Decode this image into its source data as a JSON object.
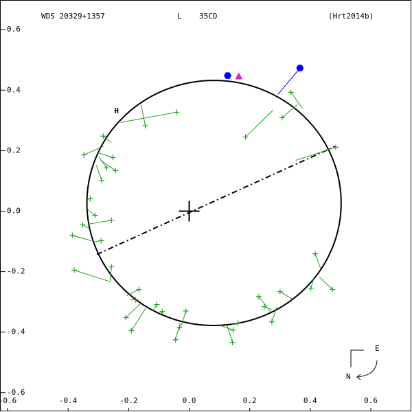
{
  "chart_data": {
    "type": "orbit",
    "title": "WDS 20329+1357",
    "component": "L",
    "discoverer": "35CD",
    "reference": "(Hrt2014b)",
    "xlim": [
      -0.625,
      0.736
    ],
    "ylim": [
      -0.664,
      0.698
    ],
    "xticks": [
      -0.6,
      -0.4,
      -0.2,
      {
        "value": 0,
        "label": "0.0"
      },
      0.2,
      0.4,
      0.6
    ],
    "yticks": [
      0.6,
      0.4,
      0.2,
      {
        "value": 0,
        "label": "0.0"
      },
      -0.2,
      -0.4,
      -0.6
    ],
    "orbit": {
      "cx": 0.082,
      "cy": 0.027,
      "rx": 0.42,
      "ry": 0.405,
      "color": "#000000"
    },
    "node_line": {
      "x": [
        -0.305,
        0.482
      ],
      "y": [
        -0.143,
        0.214
      ],
      "color": "#000000"
    },
    "primary": {
      "x": 0,
      "y": 0,
      "color": "#000000"
    },
    "observations": {
      "color": "#22a022",
      "x": [
        -0.041,
        -0.145,
        0.186,
        0.307,
        0.336,
        0.484,
        -0.284,
        -0.348,
        -0.252,
        -0.273,
        -0.243,
        -0.289,
        -0.327,
        -0.311,
        -0.257,
        -0.352,
        -0.386,
        -0.291,
        -0.38,
        -0.257,
        -0.166,
        -0.177,
        -0.209,
        -0.191,
        -0.107,
        -0.089,
        -0.045,
        -0.032,
        -0.011,
        0.145,
        0.143,
        0.161,
        0.23,
        0.248,
        0.273,
        0.3,
        0.416,
        0.402,
        0.473
      ],
      "y": [
        0.327,
        0.282,
        0.245,
        0.309,
        0.393,
        0.211,
        0.248,
        0.186,
        0.177,
        0.143,
        0.134,
        0.102,
        0.041,
        -0.014,
        -0.03,
        -0.045,
        -0.08,
        -0.098,
        -0.195,
        -0.184,
        -0.259,
        -0.293,
        -0.352,
        -0.395,
        -0.309,
        -0.332,
        -0.425,
        -0.384,
        -0.33,
        -0.393,
        -0.434,
        -0.37,
        -0.282,
        -0.316,
        -0.366,
        -0.266,
        -0.141,
        -0.255,
        -0.259
      ],
      "fit_x": [
        -0.227,
        -0.159,
        0.277,
        0.357,
        0.375,
        0.352,
        -0.257,
        -0.284,
        -0.302,
        -0.298,
        -0.293,
        -0.307,
        -0.334,
        -0.336,
        -0.334,
        -0.327,
        -0.323,
        -0.32,
        -0.259,
        -0.261,
        -0.207,
        -0.193,
        -0.157,
        -0.143,
        -0.12,
        -0.098,
        -0.03,
        -0.02,
        -0.023,
        0.109,
        0.125,
        0.141,
        0.268,
        0.273,
        0.289,
        0.341,
        0.434,
        0.411,
        0.43
      ],
      "fit_y": [
        0.293,
        0.352,
        0.334,
        0.352,
        0.339,
        0.168,
        0.227,
        0.214,
        0.193,
        0.18,
        0.168,
        0.152,
        0.039,
        0.005,
        -0.043,
        -0.059,
        -0.098,
        -0.102,
        -0.234,
        -0.23,
        -0.28,
        -0.293,
        -0.302,
        -0.32,
        -0.33,
        -0.343,
        -0.37,
        -0.366,
        -0.37,
        -0.38,
        -0.377,
        -0.375,
        -0.332,
        -0.325,
        -0.318,
        -0.291,
        -0.189,
        -0.223,
        -0.218
      ]
    },
    "special_points": [
      {
        "x": 0.127,
        "y": 0.448,
        "color": "#0000ff",
        "marker": "hexagon"
      },
      {
        "x": 0.366,
        "y": 0.473,
        "fit_x": 0.293,
        "fit_y": 0.386,
        "color": "#0000ff",
        "marker": "hexagon"
      },
      {
        "x": 0.164,
        "y": 0.445,
        "color": "#e020c0",
        "marker": "triangle"
      }
    ],
    "speckle_label": {
      "text": "H",
      "x": -0.24,
      "y": 0.33,
      "color": "#ff0000"
    },
    "compass": {
      "east": "E",
      "north": "N"
    }
  }
}
